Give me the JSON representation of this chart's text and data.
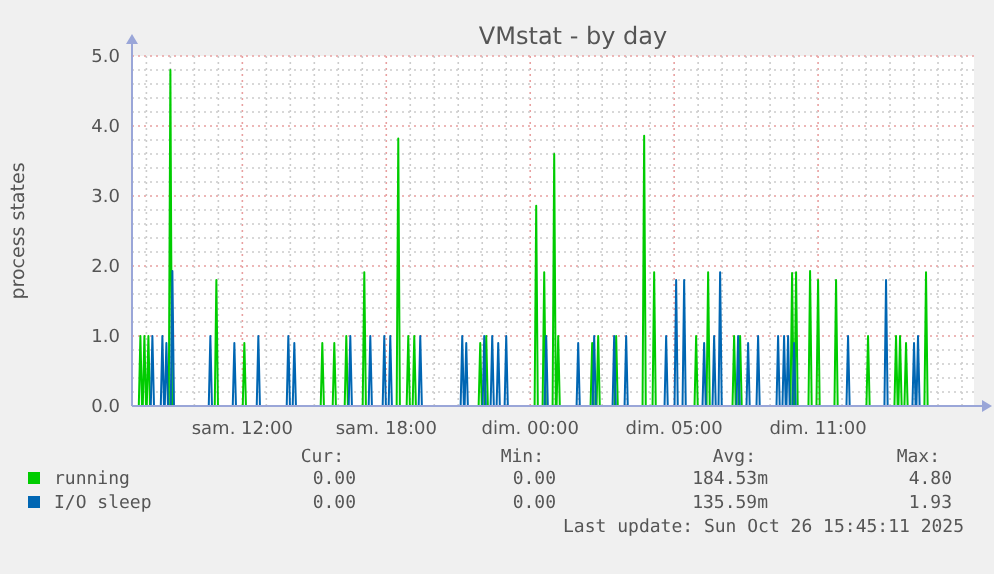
{
  "chart_data": {
    "type": "line",
    "title": "VMstat - by day",
    "ylabel": "process states",
    "xlim": [
      "2025-10-25T05:24",
      "2025-10-26T16:30"
    ],
    "ylim": [
      0,
      5
    ],
    "xticks": [
      {
        "value": "2025-10-25T06:00",
        "label": null
      },
      {
        "value": "2025-10-25T07:00",
        "label": null
      },
      {
        "value": "2025-10-25T08:00",
        "label": null
      },
      {
        "value": "2025-10-25T09:00",
        "label": null
      },
      {
        "value": "2025-10-25T10:00",
        "label": "sam. 12:00"
      },
      {
        "value": "2025-10-25T11:00",
        "label": null
      },
      {
        "value": "2025-10-25T12:00",
        "label": null
      },
      {
        "value": "2025-10-25T13:00",
        "label": null
      },
      {
        "value": "2025-10-25T14:00",
        "label": null
      },
      {
        "value": "2025-10-25T15:00",
        "label": null
      },
      {
        "value": "2025-10-25T16:00",
        "label": "sam. 18:00"
      },
      {
        "value": "2025-10-25T17:00",
        "label": null
      },
      {
        "value": "2025-10-25T18:00",
        "label": null
      },
      {
        "value": "2025-10-25T19:00",
        "label": null
      },
      {
        "value": "2025-10-25T20:00",
        "label": null
      },
      {
        "value": "2025-10-25T21:00",
        "label": null
      },
      {
        "value": "2025-10-25T22:00",
        "label": "dim. 00:00"
      },
      {
        "value": "2025-10-25T23:00",
        "label": null
      },
      {
        "value": "2025-10-26T00:00",
        "label": null
      },
      {
        "value": "2025-10-26T01:00",
        "label": null
      },
      {
        "value": "2025-10-26T02:00",
        "label": null
      },
      {
        "value": "2025-10-26T03:00",
        "label": null
      },
      {
        "value": "2025-10-26T04:00",
        "label": "dim. 05:00"
      },
      {
        "value": "2025-10-26T05:00",
        "label": null
      },
      {
        "value": "2025-10-26T06:00",
        "label": null
      },
      {
        "value": "2025-10-26T07:00",
        "label": null
      },
      {
        "value": "2025-10-26T08:00",
        "label": null
      },
      {
        "value": "2025-10-26T09:00",
        "label": null
      },
      {
        "value": "2025-10-26T10:00",
        "label": "dim. 11:00"
      },
      {
        "value": "2025-10-26T11:00",
        "label": null
      },
      {
        "value": "2025-10-26T12:00",
        "label": null
      },
      {
        "value": "2025-10-26T13:00",
        "label": null
      },
      {
        "value": "2025-10-26T14:00",
        "label": null
      },
      {
        "value": "2025-10-26T15:00",
        "label": null
      },
      {
        "value": "2025-10-26T16:00",
        "label": null
      }
    ],
    "yticks": [
      {
        "value": 0,
        "label": "0.0"
      },
      {
        "value": 0.2,
        "label": null
      },
      {
        "value": 0.4,
        "label": null
      },
      {
        "value": 0.6,
        "label": null
      },
      {
        "value": 0.8,
        "label": null
      },
      {
        "value": 1,
        "label": "1.0"
      },
      {
        "value": 1.2,
        "label": null
      },
      {
        "value": 1.4,
        "label": null
      },
      {
        "value": 1.6,
        "label": null
      },
      {
        "value": 1.8,
        "label": null
      },
      {
        "value": 2,
        "label": "2.0"
      },
      {
        "value": 2.2,
        "label": null
      },
      {
        "value": 2.4,
        "label": null
      },
      {
        "value": 2.6,
        "label": null
      },
      {
        "value": 2.8,
        "label": null
      },
      {
        "value": 3,
        "label": "3.0"
      },
      {
        "value": 3.2,
        "label": null
      },
      {
        "value": 3.4,
        "label": null
      },
      {
        "value": 3.6,
        "label": null
      },
      {
        "value": 3.8,
        "label": null
      },
      {
        "value": 4,
        "label": "4.0"
      },
      {
        "value": 4.2,
        "label": null
      },
      {
        "value": 4.4,
        "label": null
      },
      {
        "value": 4.6,
        "label": null
      },
      {
        "value": 4.8,
        "label": null
      },
      {
        "value": 5,
        "label": "5.0"
      }
    ],
    "grid": true,
    "legend": "bottom",
    "marker": "none",
    "line_style": "solid",
    "series": [
      {
        "name": "running",
        "color": "#00cc00",
        "x": [
          "2025-10-25T05:41",
          "2025-10-25T05:45",
          "2025-10-25T05:49",
          "2025-10-25T05:51",
          "2025-10-25T05:55",
          "2025-10-25T05:59",
          "2025-10-25T06:01",
          "2025-10-25T06:05",
          "2025-10-25T06:09",
          "2025-10-25T06:56",
          "2025-10-25T07:00",
          "2025-10-25T07:04",
          "2025-10-25T08:51",
          "2025-10-25T08:55",
          "2025-10-25T08:59",
          "2025-10-25T10:01",
          "2025-10-25T10:05",
          "2025-10-25T10:09",
          "2025-10-25T13:16",
          "2025-10-25T13:20",
          "2025-10-25T13:24",
          "2025-10-25T13:46",
          "2025-10-25T13:50",
          "2025-10-25T13:54",
          "2025-10-25T14:16",
          "2025-10-25T14:20",
          "2025-10-25T14:24",
          "2025-10-25T15:01",
          "2025-10-25T15:05",
          "2025-10-25T15:09",
          "2025-10-25T16:26",
          "2025-10-25T16:30",
          "2025-10-25T16:34",
          "2025-10-25T16:51",
          "2025-10-25T16:55",
          "2025-10-25T16:59",
          "2025-10-25T17:06",
          "2025-10-25T17:10",
          "2025-10-25T17:14",
          "2025-10-25T19:51",
          "2025-10-25T19:55",
          "2025-10-25T19:59",
          "2025-10-25T20:06",
          "2025-10-25T20:10",
          "2025-10-25T20:14",
          "2025-10-25T22:11",
          "2025-10-25T22:15",
          "2025-10-25T22:19",
          "2025-10-25T22:31",
          "2025-10-25T22:35",
          "2025-10-25T22:39",
          "2025-10-25T22:56",
          "2025-10-25T23:00",
          "2025-10-25T23:04",
          "2025-10-25T23:06",
          "2025-10-25T23:10",
          "2025-10-25T23:14",
          "2025-10-26T00:31",
          "2025-10-26T00:35",
          "2025-10-26T00:39",
          "2025-10-26T00:46",
          "2025-10-26T00:50",
          "2025-10-26T00:54",
          "2025-10-26T01:31",
          "2025-10-26T01:35",
          "2025-10-26T01:39",
          "2025-10-26T02:41",
          "2025-10-26T02:45",
          "2025-10-26T02:49",
          "2025-10-26T03:06",
          "2025-10-26T03:10",
          "2025-10-26T03:14",
          "2025-10-26T04:51",
          "2025-10-26T04:55",
          "2025-10-26T04:59",
          "2025-10-26T05:21",
          "2025-10-26T05:25",
          "2025-10-26T05:29",
          "2025-10-26T06:26",
          "2025-10-26T06:30",
          "2025-10-26T06:34",
          "2025-10-26T06:41",
          "2025-10-26T06:45",
          "2025-10-26T06:49",
          "2025-10-26T08:51",
          "2025-10-26T08:55",
          "2025-10-26T08:59",
          "2025-10-26T09:01",
          "2025-10-26T09:05",
          "2025-10-26T09:09",
          "2025-10-26T09:36",
          "2025-10-26T09:40",
          "2025-10-26T09:44",
          "2025-10-26T09:56",
          "2025-10-26T10:00",
          "2025-10-26T10:04",
          "2025-10-26T10:41",
          "2025-10-26T10:45",
          "2025-10-26T10:49",
          "2025-10-26T12:01",
          "2025-10-26T12:05",
          "2025-10-26T12:09",
          "2025-10-26T13:11",
          "2025-10-26T13:15",
          "2025-10-26T13:19",
          "2025-10-26T13:21",
          "2025-10-26T13:25",
          "2025-10-26T13:29",
          "2025-10-26T13:36",
          "2025-10-26T13:40",
          "2025-10-26T13:44",
          "2025-10-26T14:26",
          "2025-10-26T14:30",
          "2025-10-26T14:34"
        ],
        "values": [
          0,
          1.0,
          0,
          0,
          1.0,
          0,
          0,
          1.0,
          0,
          0,
          4.8,
          0,
          0,
          1.8,
          0,
          0,
          0.9,
          0,
          0,
          0.9,
          0,
          0,
          0.9,
          0,
          0,
          1.0,
          0,
          0,
          1.91,
          0,
          0,
          3.82,
          0,
          0,
          1.0,
          0,
          0,
          1.0,
          0,
          0,
          0.9,
          0,
          0,
          1.0,
          0,
          0,
          2.86,
          0,
          0,
          1.91,
          0,
          0,
          3.6,
          0,
          0,
          1.0,
          0,
          0,
          0.9,
          0,
          0,
          1.0,
          0,
          0,
          1.0,
          0,
          0,
          3.86,
          0,
          0,
          1.91,
          0,
          0,
          1.0,
          0,
          0,
          1.91,
          0,
          0,
          1.0,
          0,
          0,
          1.0,
          0,
          0,
          1.9,
          0,
          0,
          1.91,
          0,
          0,
          1.93,
          0,
          0,
          1.8,
          0,
          0,
          1.8,
          0,
          0,
          1.0,
          0,
          0,
          1.0,
          0,
          0,
          1.0,
          0,
          0,
          0.9,
          0,
          0,
          1.91,
          0
        ]
      },
      {
        "name": "I/O sleep",
        "color": "#0066b3",
        "x": [
          "2025-10-25T06:11",
          "2025-10-25T06:15",
          "2025-10-25T06:19",
          "2025-10-25T06:36",
          "2025-10-25T06:40",
          "2025-10-25T06:44",
          "2025-10-25T06:46",
          "2025-10-25T06:50",
          "2025-10-25T06:54",
          "2025-10-25T07:01",
          "2025-10-25T07:05",
          "2025-10-25T07:09",
          "2025-10-25T08:36",
          "2025-10-25T08:40",
          "2025-10-25T08:44",
          "2025-10-25T09:36",
          "2025-10-25T09:40",
          "2025-10-25T09:44",
          "2025-10-25T10:36",
          "2025-10-25T10:40",
          "2025-10-25T10:44",
          "2025-10-25T11:51",
          "2025-10-25T11:55",
          "2025-10-25T11:59",
          "2025-10-25T12:06",
          "2025-10-25T12:10",
          "2025-10-25T12:14",
          "2025-10-25T14:26",
          "2025-10-25T14:30",
          "2025-10-25T14:34",
          "2025-10-25T15:16",
          "2025-10-25T15:20",
          "2025-10-25T15:24",
          "2025-10-25T15:51",
          "2025-10-25T15:55",
          "2025-10-25T15:59",
          "2025-10-25T16:06",
          "2025-10-25T16:10",
          "2025-10-25T16:14",
          "2025-10-25T17:21",
          "2025-10-25T17:25",
          "2025-10-25T17:29",
          "2025-10-25T19:06",
          "2025-10-25T19:10",
          "2025-10-25T19:14",
          "2025-10-25T19:16",
          "2025-10-25T19:20",
          "2025-10-25T19:24",
          "2025-10-25T20:01",
          "2025-10-25T20:05",
          "2025-10-25T20:09",
          "2025-10-25T20:21",
          "2025-10-25T20:25",
          "2025-10-25T20:29",
          "2025-10-25T20:36",
          "2025-10-25T20:40",
          "2025-10-25T20:44",
          "2025-10-25T20:56",
          "2025-10-25T21:00",
          "2025-10-25T21:04",
          "2025-10-25T22:36",
          "2025-10-25T22:40",
          "2025-10-25T22:44",
          "2025-10-25T23:56",
          "2025-10-26T00:00",
          "2025-10-26T00:04",
          "2025-10-26T00:36",
          "2025-10-26T00:40",
          "2025-10-26T00:44",
          "2025-10-26T01:26",
          "2025-10-26T01:30",
          "2025-10-26T01:34",
          "2025-10-26T01:56",
          "2025-10-26T02:00",
          "2025-10-26T02:04",
          "2025-10-26T03:36",
          "2025-10-26T03:40",
          "2025-10-26T03:44",
          "2025-10-26T04:01",
          "2025-10-26T04:05",
          "2025-10-26T04:09",
          "2025-10-26T04:21",
          "2025-10-26T04:25",
          "2025-10-26T04:29",
          "2025-10-26T05:11",
          "2025-10-26T05:15",
          "2025-10-26T05:19",
          "2025-10-26T05:36",
          "2025-10-26T05:40",
          "2025-10-26T05:44",
          "2025-10-26T05:51",
          "2025-10-26T05:55",
          "2025-10-26T05:59",
          "2025-10-26T06:36",
          "2025-10-26T06:40",
          "2025-10-26T06:44",
          "2025-10-26T07:01",
          "2025-10-26T07:05",
          "2025-10-26T07:09",
          "2025-10-26T07:26",
          "2025-10-26T07:30",
          "2025-10-26T07:34",
          "2025-10-26T08:16",
          "2025-10-26T08:20",
          "2025-10-26T08:24",
          "2025-10-26T08:31",
          "2025-10-26T08:35",
          "2025-10-26T08:39",
          "2025-10-26T08:41",
          "2025-10-26T08:45",
          "2025-10-26T08:49",
          "2025-10-26T08:56",
          "2025-10-26T09:00",
          "2025-10-26T09:04",
          "2025-10-26T11:11",
          "2025-10-26T11:15",
          "2025-10-26T11:19",
          "2025-10-26T12:46",
          "2025-10-26T12:50",
          "2025-10-26T12:54",
          "2025-10-26T13:56",
          "2025-10-26T14:00",
          "2025-10-26T14:04",
          "2025-10-26T14:06",
          "2025-10-26T14:10",
          "2025-10-26T14:14"
        ],
        "values": [
          0,
          1.0,
          0,
          0,
          1.0,
          0,
          0,
          0.9,
          0,
          0,
          1.93,
          0,
          0,
          1.0,
          0,
          0,
          0.9,
          0,
          0,
          1.0,
          0,
          0,
          1.0,
          0,
          0,
          0.9,
          0,
          0,
          1.0,
          0,
          0,
          1.0,
          0,
          0,
          1.0,
          0,
          0,
          1.0,
          0,
          0,
          1.0,
          0,
          0,
          1.0,
          0,
          0,
          0.9,
          0,
          0,
          1.0,
          0,
          0,
          1.0,
          0,
          0,
          0.9,
          0,
          0,
          1.0,
          0,
          0,
          1.0,
          0,
          0,
          0.9,
          0,
          0,
          1.0,
          0,
          0,
          1.0,
          0,
          0,
          1.0,
          0,
          0,
          1.0,
          0,
          0,
          1.8,
          0,
          0,
          1.8,
          0,
          0,
          0.9,
          0,
          0,
          1.0,
          0,
          0,
          1.91,
          0,
          0,
          1.0,
          0,
          0,
          0.9,
          0,
          0,
          1.0,
          0,
          0,
          1.0,
          0,
          0,
          1.0,
          0,
          0,
          1.0,
          0,
          0,
          0.9,
          0,
          0,
          1.0,
          0,
          0,
          1.8,
          0,
          0,
          0.9,
          0,
          0,
          1.0,
          0
        ]
      }
    ],
    "annotations": [
      "Cur:",
      "Min:",
      "Avg:",
      "Max:",
      "0.00",
      "0.00",
      "184.53m",
      "4.80",
      "0.00",
      "0.00",
      "135.59m",
      "1.93",
      "Last update: Sun Oct 26 15:45:11 2025"
    ]
  }
}
